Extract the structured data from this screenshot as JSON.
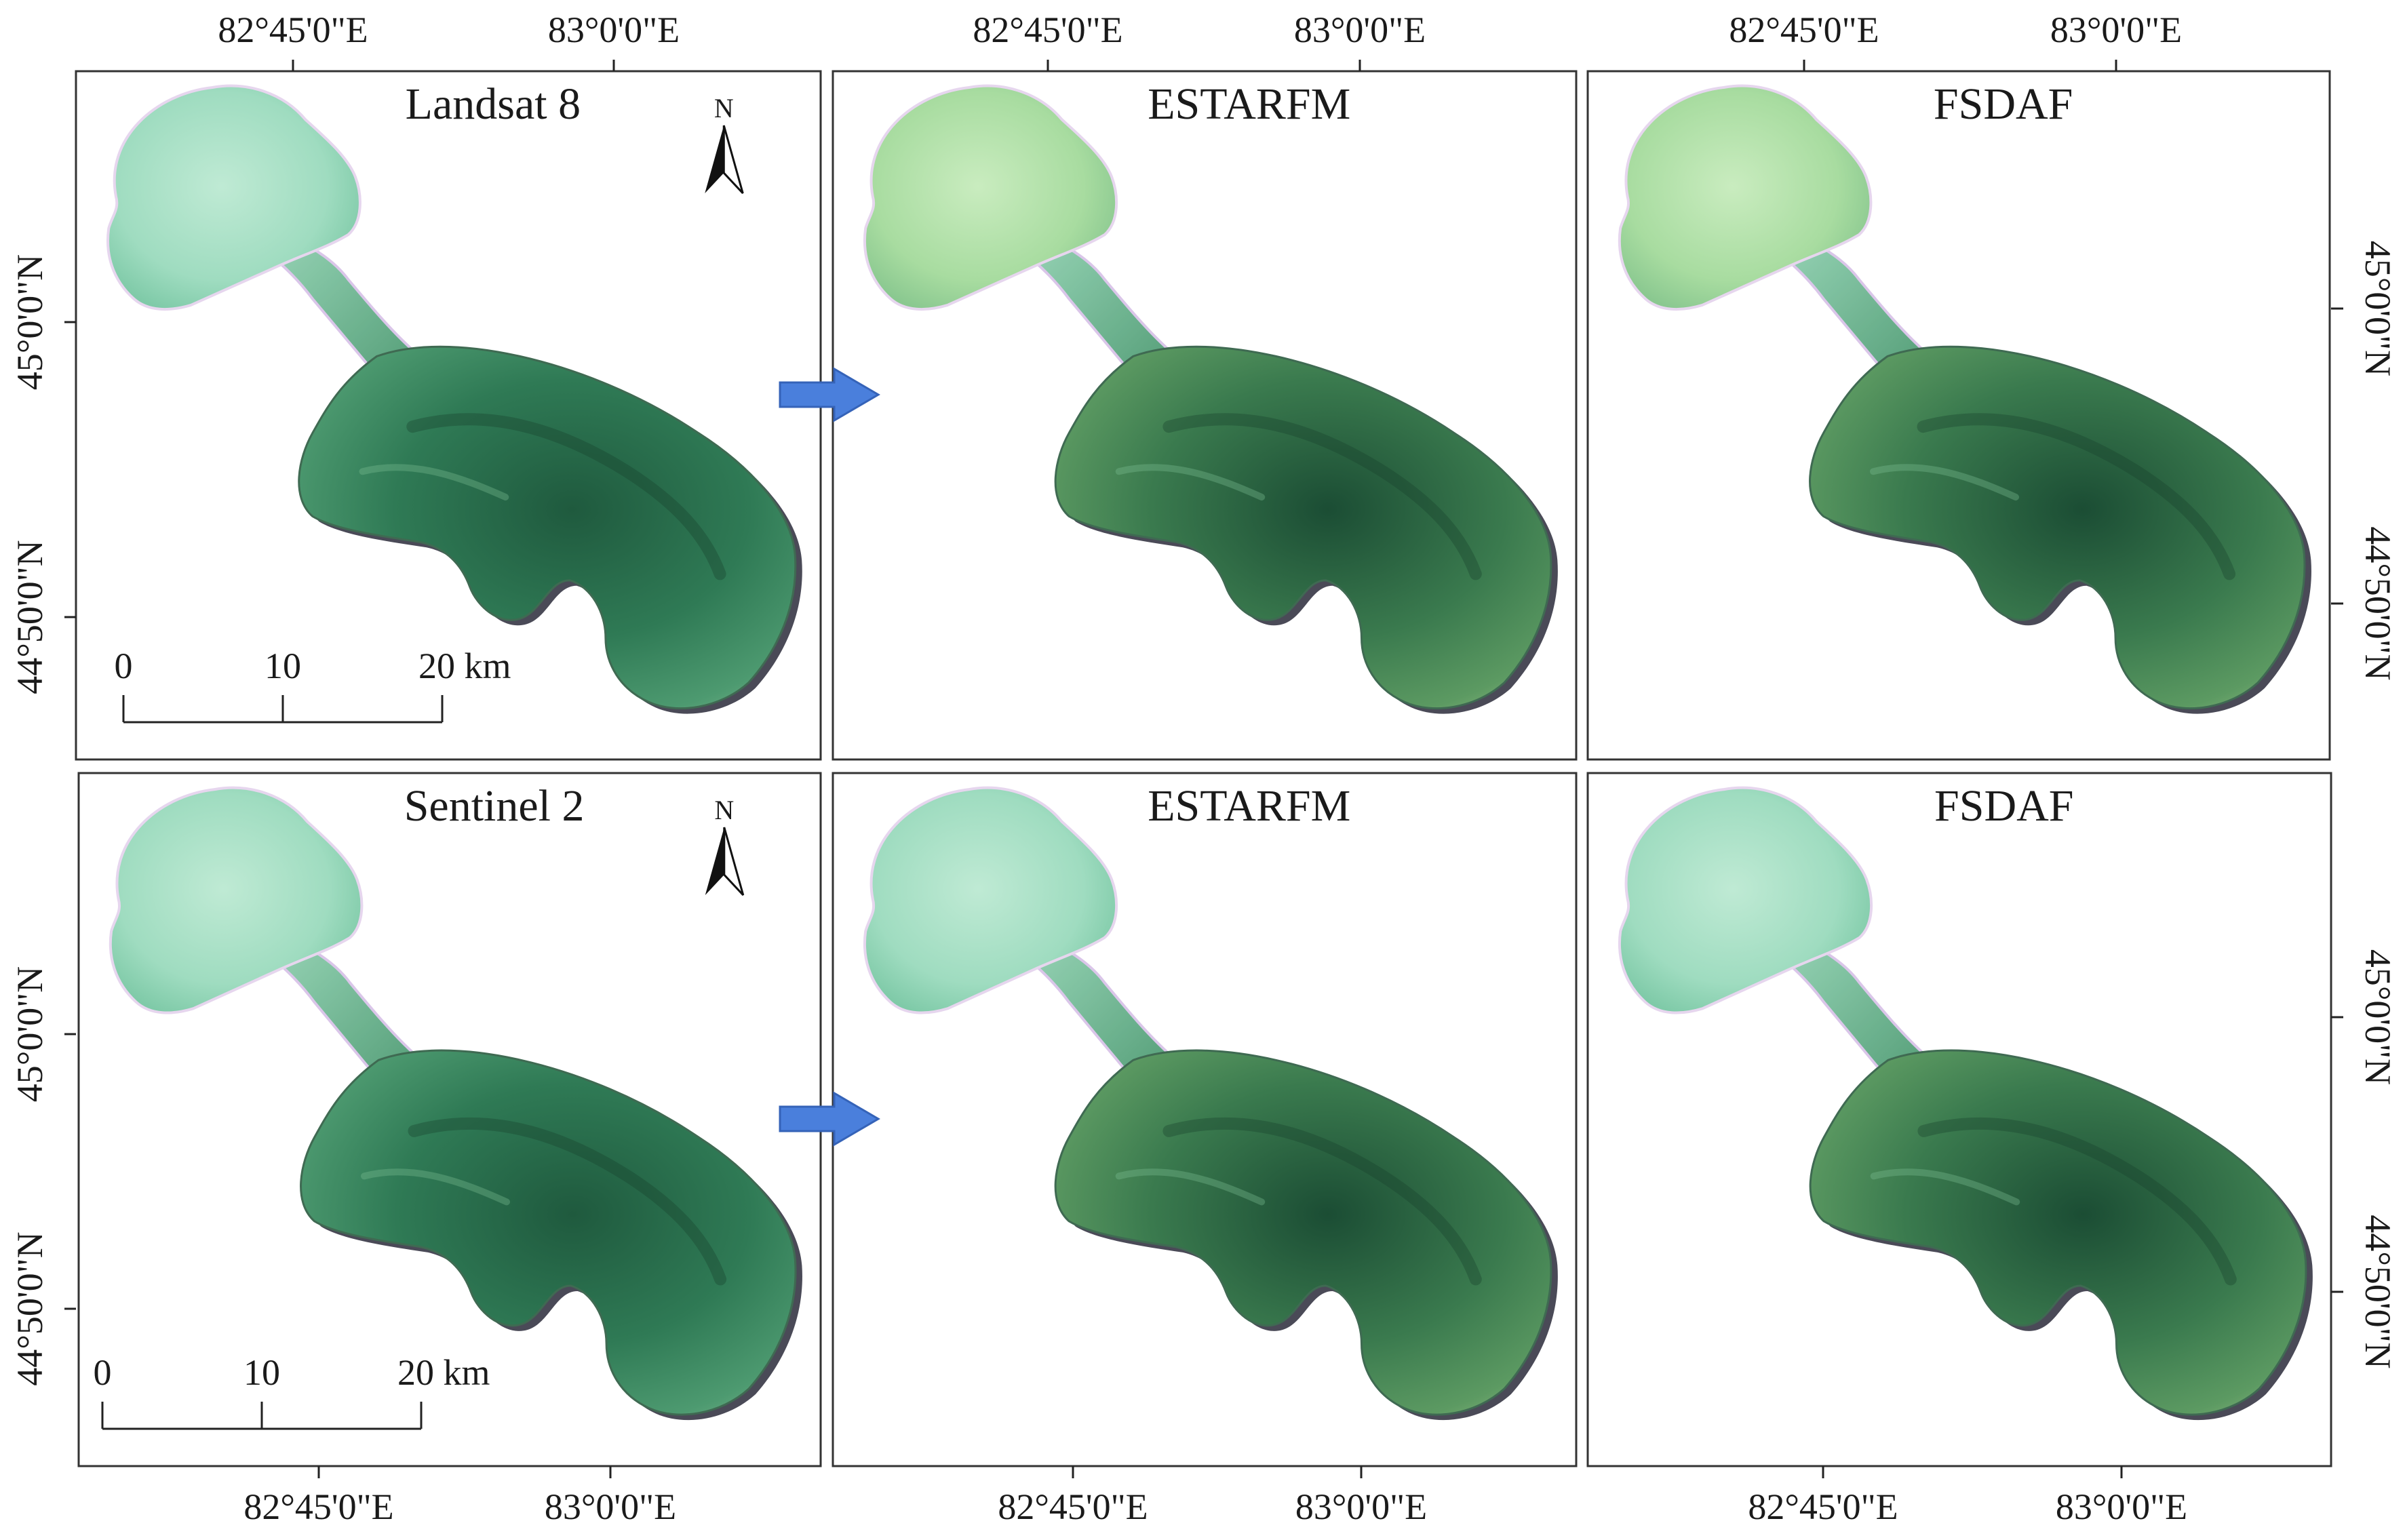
{
  "figure": {
    "panels": [
      {
        "id": "p1",
        "title": "Landsat 8",
        "north": true,
        "scale": true
      },
      {
        "id": "p2",
        "title": "ESTARFM",
        "north": false,
        "scale": false
      },
      {
        "id": "p3",
        "title": "FSDAF",
        "north": false,
        "scale": false
      },
      {
        "id": "p4",
        "title": "Sentinel 2",
        "north": true,
        "scale": true
      },
      {
        "id": "p5",
        "title": "ESTARFM",
        "north": false,
        "scale": false
      },
      {
        "id": "p6",
        "title": "FSDAF",
        "north": false,
        "scale": false
      }
    ],
    "lon_ticks": [
      "82°45'0\"E",
      "83°0'0\"E"
    ],
    "lat_ticks": [
      "45°0'0\"N",
      "44°50'0\"N"
    ],
    "north_label": "N",
    "scale_bar": {
      "labels": [
        "0",
        "10",
        "20 km"
      ]
    },
    "colors": {
      "arrow": "#4A7FDC",
      "arrow_stroke": "#3563B8",
      "frame": "#333333",
      "lake_light": "#9FDCC0",
      "lake_dark": "#2C6F4E",
      "shore": "#2A2A3A"
    }
  }
}
